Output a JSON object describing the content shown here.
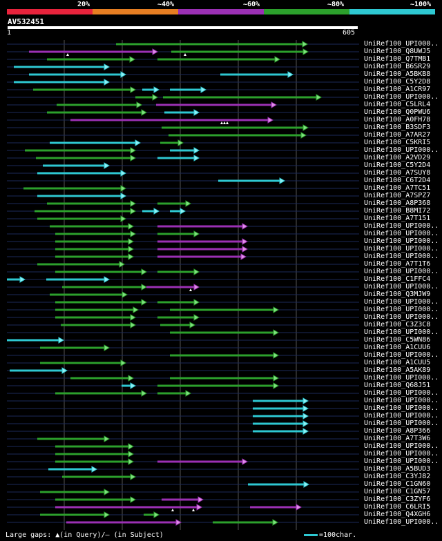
{
  "legend": [
    {
      "label": "20%",
      "color": "#e8233c"
    },
    {
      "label": "~40%",
      "color": "#e67e22"
    },
    {
      "label": "~60%",
      "color": "#9b30b4"
    },
    {
      "label": "~80%",
      "color": "#2ca02c"
    },
    {
      "label": "~100%",
      "color": "#2ec8d2"
    }
  ],
  "query": {
    "name": "AV532451",
    "start": "1",
    "end": "605"
  },
  "footer": {
    "gaps_text": "Large gaps: ▲(in Query)/– (in Subject)",
    "scale_text": "=100char."
  },
  "hits": [
    {
      "label": "UniRef100_UPI000..",
      "segs": [
        [
          168,
          445,
          "g"
        ]
      ]
    },
    {
      "label": "UniRef100_Q8UWJ5",
      "segs": [
        [
          42,
          228,
          "p"
        ],
        [
          248,
          446,
          "g"
        ]
      ],
      "gaps": [
        98,
        268
      ]
    },
    {
      "label": "UniRef100_Q7TMB1",
      "segs": [
        [
          68,
          195,
          "g"
        ],
        [
          228,
          405,
          "g"
        ]
      ]
    },
    {
      "label": "UniRef100_B6SR29",
      "segs": [
        [
          20,
          158,
          "c"
        ]
      ]
    },
    {
      "label": "UniRef100_A5BKB8",
      "segs": [
        [
          42,
          182,
          "c"
        ],
        [
          319,
          424,
          "c"
        ]
      ]
    },
    {
      "label": "UniRef100_C5Y2D8",
      "segs": [
        [
          20,
          158,
          "c"
        ]
      ]
    },
    {
      "label": "UniRef100_A1CR97",
      "segs": [
        [
          48,
          196,
          "g"
        ],
        [
          206,
          230,
          "c"
        ],
        [
          246,
          298,
          "c"
        ]
      ]
    },
    {
      "label": "UniRef100_UPI000..",
      "segs": [
        [
          196,
          228,
          "g"
        ],
        [
          236,
          465,
          "g"
        ]
      ]
    },
    {
      "label": "UniRef100_C5LRL4",
      "segs": [
        [
          82,
          205,
          "g"
        ],
        [
          226,
          400,
          "p"
        ]
      ]
    },
    {
      "label": "UniRef100_Q0PWU6",
      "segs": [
        [
          68,
          212,
          "g"
        ],
        [
          238,
          288,
          "c"
        ]
      ]
    },
    {
      "label": "UniRef100_A0FH78",
      "segs": [
        [
          102,
          395,
          "p"
        ]
      ],
      "gaps": [
        321,
        325,
        329
      ]
    },
    {
      "label": "UniRef100_B3SDF3",
      "segs": [
        [
          234,
          446,
          "g"
        ]
      ]
    },
    {
      "label": "UniRef100_A7AR27",
      "segs": [
        [
          244,
          443,
          "g"
        ]
      ]
    },
    {
      "label": "UniRef100_C5KRI5",
      "segs": [
        [
          72,
          203,
          "c"
        ],
        [
          232,
          265,
          "g"
        ]
      ]
    },
    {
      "label": "UniRef100_UPI000..",
      "segs": [
        [
          36,
          196,
          "g"
        ],
        [
          246,
          288,
          "c"
        ]
      ]
    },
    {
      "label": "UniRef100_A2VD29",
      "segs": [
        [
          52,
          196,
          "g"
        ],
        [
          228,
          288,
          "c"
        ]
      ]
    },
    {
      "label": "UniRef100_C5Y2D4",
      "segs": [
        [
          62,
          158,
          "c"
        ]
      ]
    },
    {
      "label": "UniRef100_A7SUY8",
      "segs": [
        [
          54,
          182,
          "c"
        ]
      ]
    },
    {
      "label": "UniRef100_C6T2D4",
      "segs": [
        [
          316,
          412,
          "c"
        ]
      ]
    },
    {
      "label": "UniRef100_A7TC51",
      "segs": [
        [
          34,
          182,
          "g"
        ]
      ]
    },
    {
      "label": "UniRef100_A7SPZ7",
      "segs": [
        [
          54,
          182,
          "c"
        ]
      ]
    },
    {
      "label": "UniRef100_A8P368",
      "segs": [
        [
          68,
          196,
          "g"
        ],
        [
          228,
          276,
          "g"
        ]
      ]
    },
    {
      "label": "UniRef100_B8MI72",
      "segs": [
        [
          50,
          196,
          "g"
        ],
        [
          206,
          230,
          "c"
        ],
        [
          246,
          268,
          "c"
        ]
      ]
    },
    {
      "label": "UniRef100_A7T151",
      "segs": [
        [
          54,
          182,
          "g"
        ]
      ]
    },
    {
      "label": "UniRef100_UPI000..",
      "segs": [
        [
          72,
          193,
          "g"
        ],
        [
          228,
          358,
          "p"
        ]
      ]
    },
    {
      "label": "UniRef100_UPI000..",
      "segs": [
        [
          80,
          196,
          "g"
        ],
        [
          228,
          288,
          "g"
        ]
      ]
    },
    {
      "label": "UniRef100_UPI000..",
      "segs": [
        [
          80,
          193,
          "g"
        ],
        [
          228,
          358,
          "p"
        ]
      ]
    },
    {
      "label": "UniRef100_UPI000..",
      "segs": [
        [
          80,
          193,
          "g"
        ],
        [
          228,
          358,
          "p"
        ]
      ]
    },
    {
      "label": "UniRef100_UPI000..",
      "segs": [
        [
          80,
          193,
          "g"
        ],
        [
          228,
          356,
          "p"
        ]
      ]
    },
    {
      "label": "UniRef100_A7T1T6",
      "segs": [
        [
          54,
          180,
          "g"
        ]
      ]
    },
    {
      "label": "UniRef100_UPI000..",
      "segs": [
        [
          80,
          212,
          "g"
        ],
        [
          228,
          288,
          "g"
        ]
      ]
    },
    {
      "label": "UniRef100_C1FFC4",
      "segs": [
        [
          10,
          36,
          "c"
        ],
        [
          67,
          158,
          "c"
        ]
      ]
    },
    {
      "label": "UniRef100_UPI000..",
      "segs": [
        [
          90,
          212,
          "g"
        ],
        [
          212,
          288,
          "p"
        ]
      ],
      "gaps": [
        276
      ]
    },
    {
      "label": "UniRef100_Q3MJW9",
      "segs": [
        [
          72,
          184,
          "g"
        ]
      ]
    },
    {
      "label": "UniRef100_UPI000..",
      "segs": [
        [
          80,
          212,
          "g"
        ],
        [
          228,
          288,
          "g"
        ]
      ]
    },
    {
      "label": "UniRef100_UPI000..",
      "segs": [
        [
          80,
          200,
          "g"
        ],
        [
          246,
          403,
          "g"
        ]
      ]
    },
    {
      "label": "UniRef100_UPI000..",
      "segs": [
        [
          80,
          196,
          "g"
        ],
        [
          228,
          288,
          "g"
        ]
      ]
    },
    {
      "label": "UniRef100_C3Z3C8",
      "segs": [
        [
          88,
          196,
          "g"
        ],
        [
          232,
          282,
          "g"
        ]
      ]
    },
    {
      "label": "UniRef100_UPI000..",
      "segs": [
        [
          246,
          403,
          "g"
        ]
      ]
    },
    {
      "label": "UniRef100_C5WN86",
      "segs": [
        [
          10,
          92,
          "c"
        ]
      ]
    },
    {
      "label": "UniRef100_A1CUU6",
      "segs": [
        [
          58,
          158,
          "g"
        ]
      ]
    },
    {
      "label": "UniRef100_UPI000..",
      "segs": [
        [
          246,
          403,
          "g"
        ]
      ]
    },
    {
      "label": "UniRef100_A1CUU5",
      "segs": [
        [
          58,
          182,
          "g"
        ]
      ]
    },
    {
      "label": "UniRef100_A5AK89",
      "segs": [
        [
          14,
          97,
          "c"
        ]
      ]
    },
    {
      "label": "UniRef100_UPI000..",
      "segs": [
        [
          102,
          193,
          "g"
        ],
        [
          246,
          403,
          "g"
        ]
      ]
    },
    {
      "label": "UniRef100_Q68J51",
      "segs": [
        [
          176,
          196,
          "c"
        ],
        [
          228,
          403,
          "g"
        ]
      ]
    },
    {
      "label": "UniRef100_UPI000..",
      "segs": [
        [
          80,
          212,
          "g"
        ],
        [
          228,
          276,
          "g"
        ]
      ]
    },
    {
      "label": "UniRef100_UPI000..",
      "segs": [
        [
          366,
          446,
          "c"
        ]
      ]
    },
    {
      "label": "UniRef100_UPI000..",
      "segs": [
        [
          366,
          446,
          "c"
        ]
      ]
    },
    {
      "label": "UniRef100_UPI000..",
      "segs": [
        [
          366,
          446,
          "c"
        ]
      ]
    },
    {
      "label": "UniRef100_UPI000..",
      "segs": [
        [
          366,
          446,
          "c"
        ]
      ]
    },
    {
      "label": "UniRef100_A8P366",
      "segs": [
        [
          366,
          446,
          "c"
        ]
      ]
    },
    {
      "label": "UniRef100_A7T3W6",
      "segs": [
        [
          54,
          158,
          "g"
        ]
      ]
    },
    {
      "label": "UniRef100_UPI000..",
      "segs": [
        [
          80,
          193,
          "g"
        ]
      ]
    },
    {
      "label": "UniRef100_UPI000..",
      "segs": [
        [
          80,
          193,
          "g"
        ]
      ]
    },
    {
      "label": "UniRef100_UPI000..",
      "segs": [
        [
          80,
          193,
          "g"
        ],
        [
          228,
          358,
          "p"
        ]
      ]
    },
    {
      "label": "UniRef100_A5BUD3",
      "segs": [
        [
          70,
          140,
          "c"
        ]
      ]
    },
    {
      "label": "UniRef100_C3YJ82",
      "segs": [
        [
          90,
          196,
          "g"
        ]
      ]
    },
    {
      "label": "UniRef100_C1GN60",
      "segs": [
        [
          359,
          447,
          "c"
        ]
      ]
    },
    {
      "label": "UniRef100_C1GN57",
      "segs": [
        [
          58,
          158,
          "g"
        ]
      ]
    },
    {
      "label": "UniRef100_C3ZYF6",
      "segs": [
        [
          80,
          196,
          "g"
        ],
        [
          234,
          294,
          "p"
        ]
      ]
    },
    {
      "label": "UniRef100_C6LRI5",
      "segs": [
        [
          80,
          292,
          "p"
        ],
        [
          362,
          436,
          "p"
        ]
      ],
      "gaps": [
        250,
        280
      ]
    },
    {
      "label": "UniRef100_Q4XGH6",
      "segs": [
        [
          58,
          158,
          "g"
        ],
        [
          208,
          230,
          "g"
        ]
      ]
    },
    {
      "label": "UniRef100_UPI000..",
      "segs": [
        [
          96,
          262,
          "p"
        ],
        [
          308,
          402,
          "g"
        ]
      ]
    }
  ]
}
